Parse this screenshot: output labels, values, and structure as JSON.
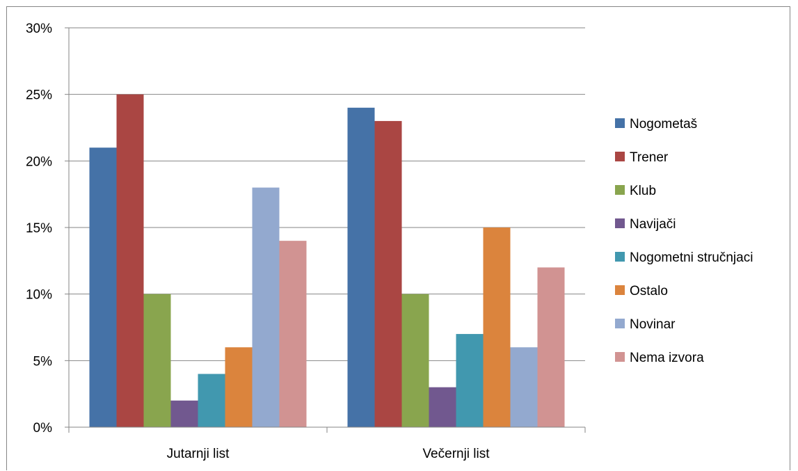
{
  "chart_data": {
    "type": "bar",
    "categories": [
      "Jutarnji list",
      "Večernji list"
    ],
    "series": [
      {
        "name": "Nogometaš",
        "color": "#4572A7",
        "values": [
          21,
          24
        ]
      },
      {
        "name": "Trener",
        "color": "#AA4643",
        "values": [
          25,
          23
        ]
      },
      {
        "name": "Klub",
        "color": "#89A54E",
        "values": [
          10,
          10
        ]
      },
      {
        "name": "Navijači",
        "color": "#71588F",
        "values": [
          2,
          3
        ]
      },
      {
        "name": "Nogometni stručnjaci",
        "color": "#4198AF",
        "values": [
          4,
          7
        ]
      },
      {
        "name": "Ostalo",
        "color": "#DB843D",
        "values": [
          6,
          15
        ]
      },
      {
        "name": "Novinar",
        "color": "#93A9CF",
        "values": [
          18,
          6
        ]
      },
      {
        "name": "Nema izvora",
        "color": "#D19392",
        "values": [
          14,
          12
        ]
      }
    ],
    "y_ticks": [
      "0%",
      "5%",
      "10%",
      "15%",
      "20%",
      "25%",
      "30%"
    ],
    "ylim": [
      0,
      30
    ],
    "y_unit": "%",
    "grid": true,
    "legend_position": "right"
  }
}
